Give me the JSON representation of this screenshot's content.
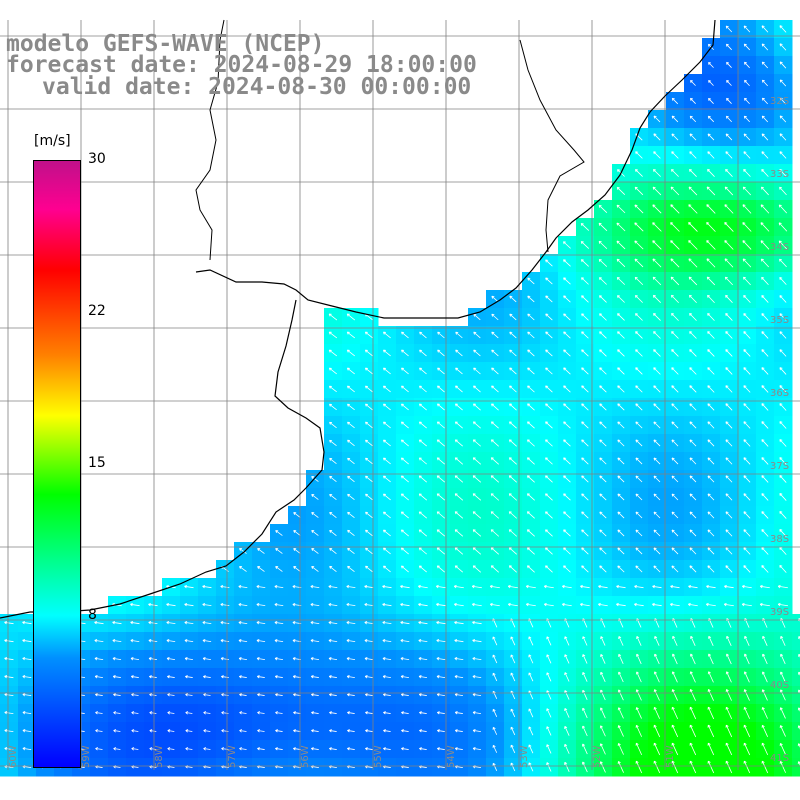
{
  "title": {
    "line1": "modelo GEFS-WAVE (NCEP)",
    "line2": "forecast date: 2024-08-29 18:00:00",
    "line3": "valid date: 2024-08-30 00:00:00"
  },
  "colorbar": {
    "units": "[m/s]",
    "ticks": [
      {
        "value": 30,
        "label": "30"
      },
      {
        "value": 22,
        "label": "22"
      },
      {
        "value": 15,
        "label": "15"
      },
      {
        "value": 8,
        "label": "8"
      }
    ]
  },
  "lon_labels": [
    "60W",
    "59W",
    "58W",
    "57W",
    "56W",
    "55W",
    "54W",
    "53W",
    "52W",
    "51W"
  ],
  "lat_labels": [
    "32S",
    "33S",
    "34S",
    "35S",
    "36S",
    "37S",
    "38S",
    "39S",
    "40S",
    "41S"
  ],
  "colors": {
    "land": "#ffffff",
    "grid": "#808080",
    "coast": "#000000",
    "arrow": "#ffffff",
    "title": "#8a8a8a"
  }
}
